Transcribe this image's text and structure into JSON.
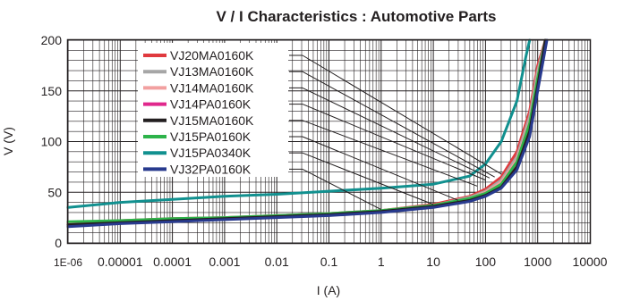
{
  "chart_data": {
    "type": "line",
    "title": "V / I Characteristics : Automotive Parts",
    "xlabel": "I (A)",
    "ylabel": "V (V)",
    "x_scale": "log",
    "xlim": [
      1e-06,
      10000
    ],
    "ylim": [
      0,
      200
    ],
    "x_tick_labels": [
      "1E-06",
      "0.00001",
      "0.0001",
      "0.001",
      "0.01",
      "0.1",
      "1",
      "10",
      "100",
      "1000",
      "10000"
    ],
    "y_tick_labels": [
      "0",
      "50",
      "100",
      "150",
      "200"
    ],
    "grid": true,
    "legend_position": "top-left",
    "series": [
      {
        "name": "VJ20MA0160K",
        "color": "#e03a3e",
        "x": [
          1e-06,
          1e-05,
          0.0001,
          0.001,
          0.01,
          0.1,
          1,
          10,
          50,
          100,
          200,
          400,
          700,
          1000,
          1400
        ],
        "y": [
          20,
          22,
          24,
          25,
          27,
          29,
          32,
          38,
          46,
          53,
          65,
          90,
          130,
          175,
          200
        ]
      },
      {
        "name": "VJ13MA0160K",
        "color": "#a6a6a6",
        "x": [
          1e-06,
          1e-05,
          0.0001,
          0.001,
          0.01,
          0.1,
          1,
          10,
          50,
          100,
          200,
          400,
          700,
          1000,
          1400
        ],
        "y": [
          19,
          21,
          23,
          25,
          27,
          29,
          32,
          37,
          45,
          51,
          62,
          85,
          125,
          170,
          200
        ]
      },
      {
        "name": "VJ14MA0160K",
        "color": "#f2a0a0",
        "x": [
          1e-06,
          1e-05,
          0.0001,
          0.001,
          0.01,
          0.1,
          1,
          10,
          50,
          100,
          200,
          400,
          700,
          1000,
          1400
        ],
        "y": [
          19,
          21,
          23,
          25,
          27,
          29,
          32,
          37,
          44,
          50,
          60,
          82,
          120,
          165,
          200
        ]
      },
      {
        "name": "VJ14PA0160K",
        "color": "#e0288c",
        "x": [
          1e-06,
          1e-05,
          0.0001,
          0.001,
          0.01,
          0.1,
          1,
          10,
          50,
          100,
          200,
          400,
          700,
          1000,
          1400
        ],
        "y": [
          18,
          21,
          23,
          24,
          26,
          28,
          31,
          36,
          43,
          48,
          57,
          78,
          115,
          160,
          200
        ]
      },
      {
        "name": "VJ15MA0160K",
        "color": "#231f20",
        "x": [
          1e-06,
          1e-05,
          0.0001,
          0.001,
          0.01,
          0.1,
          1,
          10,
          50,
          100,
          200,
          400,
          700,
          1000,
          1400
        ],
        "y": [
          18,
          20,
          22,
          24,
          26,
          28,
          31,
          36,
          42,
          47,
          55,
          75,
          110,
          155,
          200
        ]
      },
      {
        "name": "VJ15PA0160K",
        "color": "#2db34a",
        "x": [
          1e-06,
          1e-05,
          0.0001,
          0.001,
          0.01,
          0.1,
          1,
          10,
          50,
          100,
          200,
          400,
          700,
          1000,
          1400
        ],
        "y": [
          21,
          22,
          24,
          25,
          27,
          29,
          32,
          37,
          44,
          49,
          58,
          80,
          118,
          163,
          200
        ]
      },
      {
        "name": "VJ15PA0340K",
        "color": "#11908f",
        "x": [
          1e-06,
          1e-05,
          0.0001,
          0.001,
          0.01,
          0.1,
          1,
          10,
          50,
          100,
          200,
          400,
          600,
          700
        ],
        "y": [
          35,
          40,
          43,
          46,
          48,
          51,
          54,
          58,
          66,
          78,
          100,
          140,
          185,
          200
        ]
      },
      {
        "name": "VJ32PA0160K",
        "color": "#283a8e",
        "x": [
          1e-06,
          1e-05,
          0.0001,
          0.001,
          0.01,
          0.1,
          1,
          10,
          50,
          100,
          200,
          400,
          700,
          1000,
          1500
        ],
        "y": [
          16,
          19,
          21,
          23,
          25,
          27,
          30,
          35,
          41,
          46,
          54,
          72,
          105,
          150,
          200
        ]
      }
    ]
  }
}
